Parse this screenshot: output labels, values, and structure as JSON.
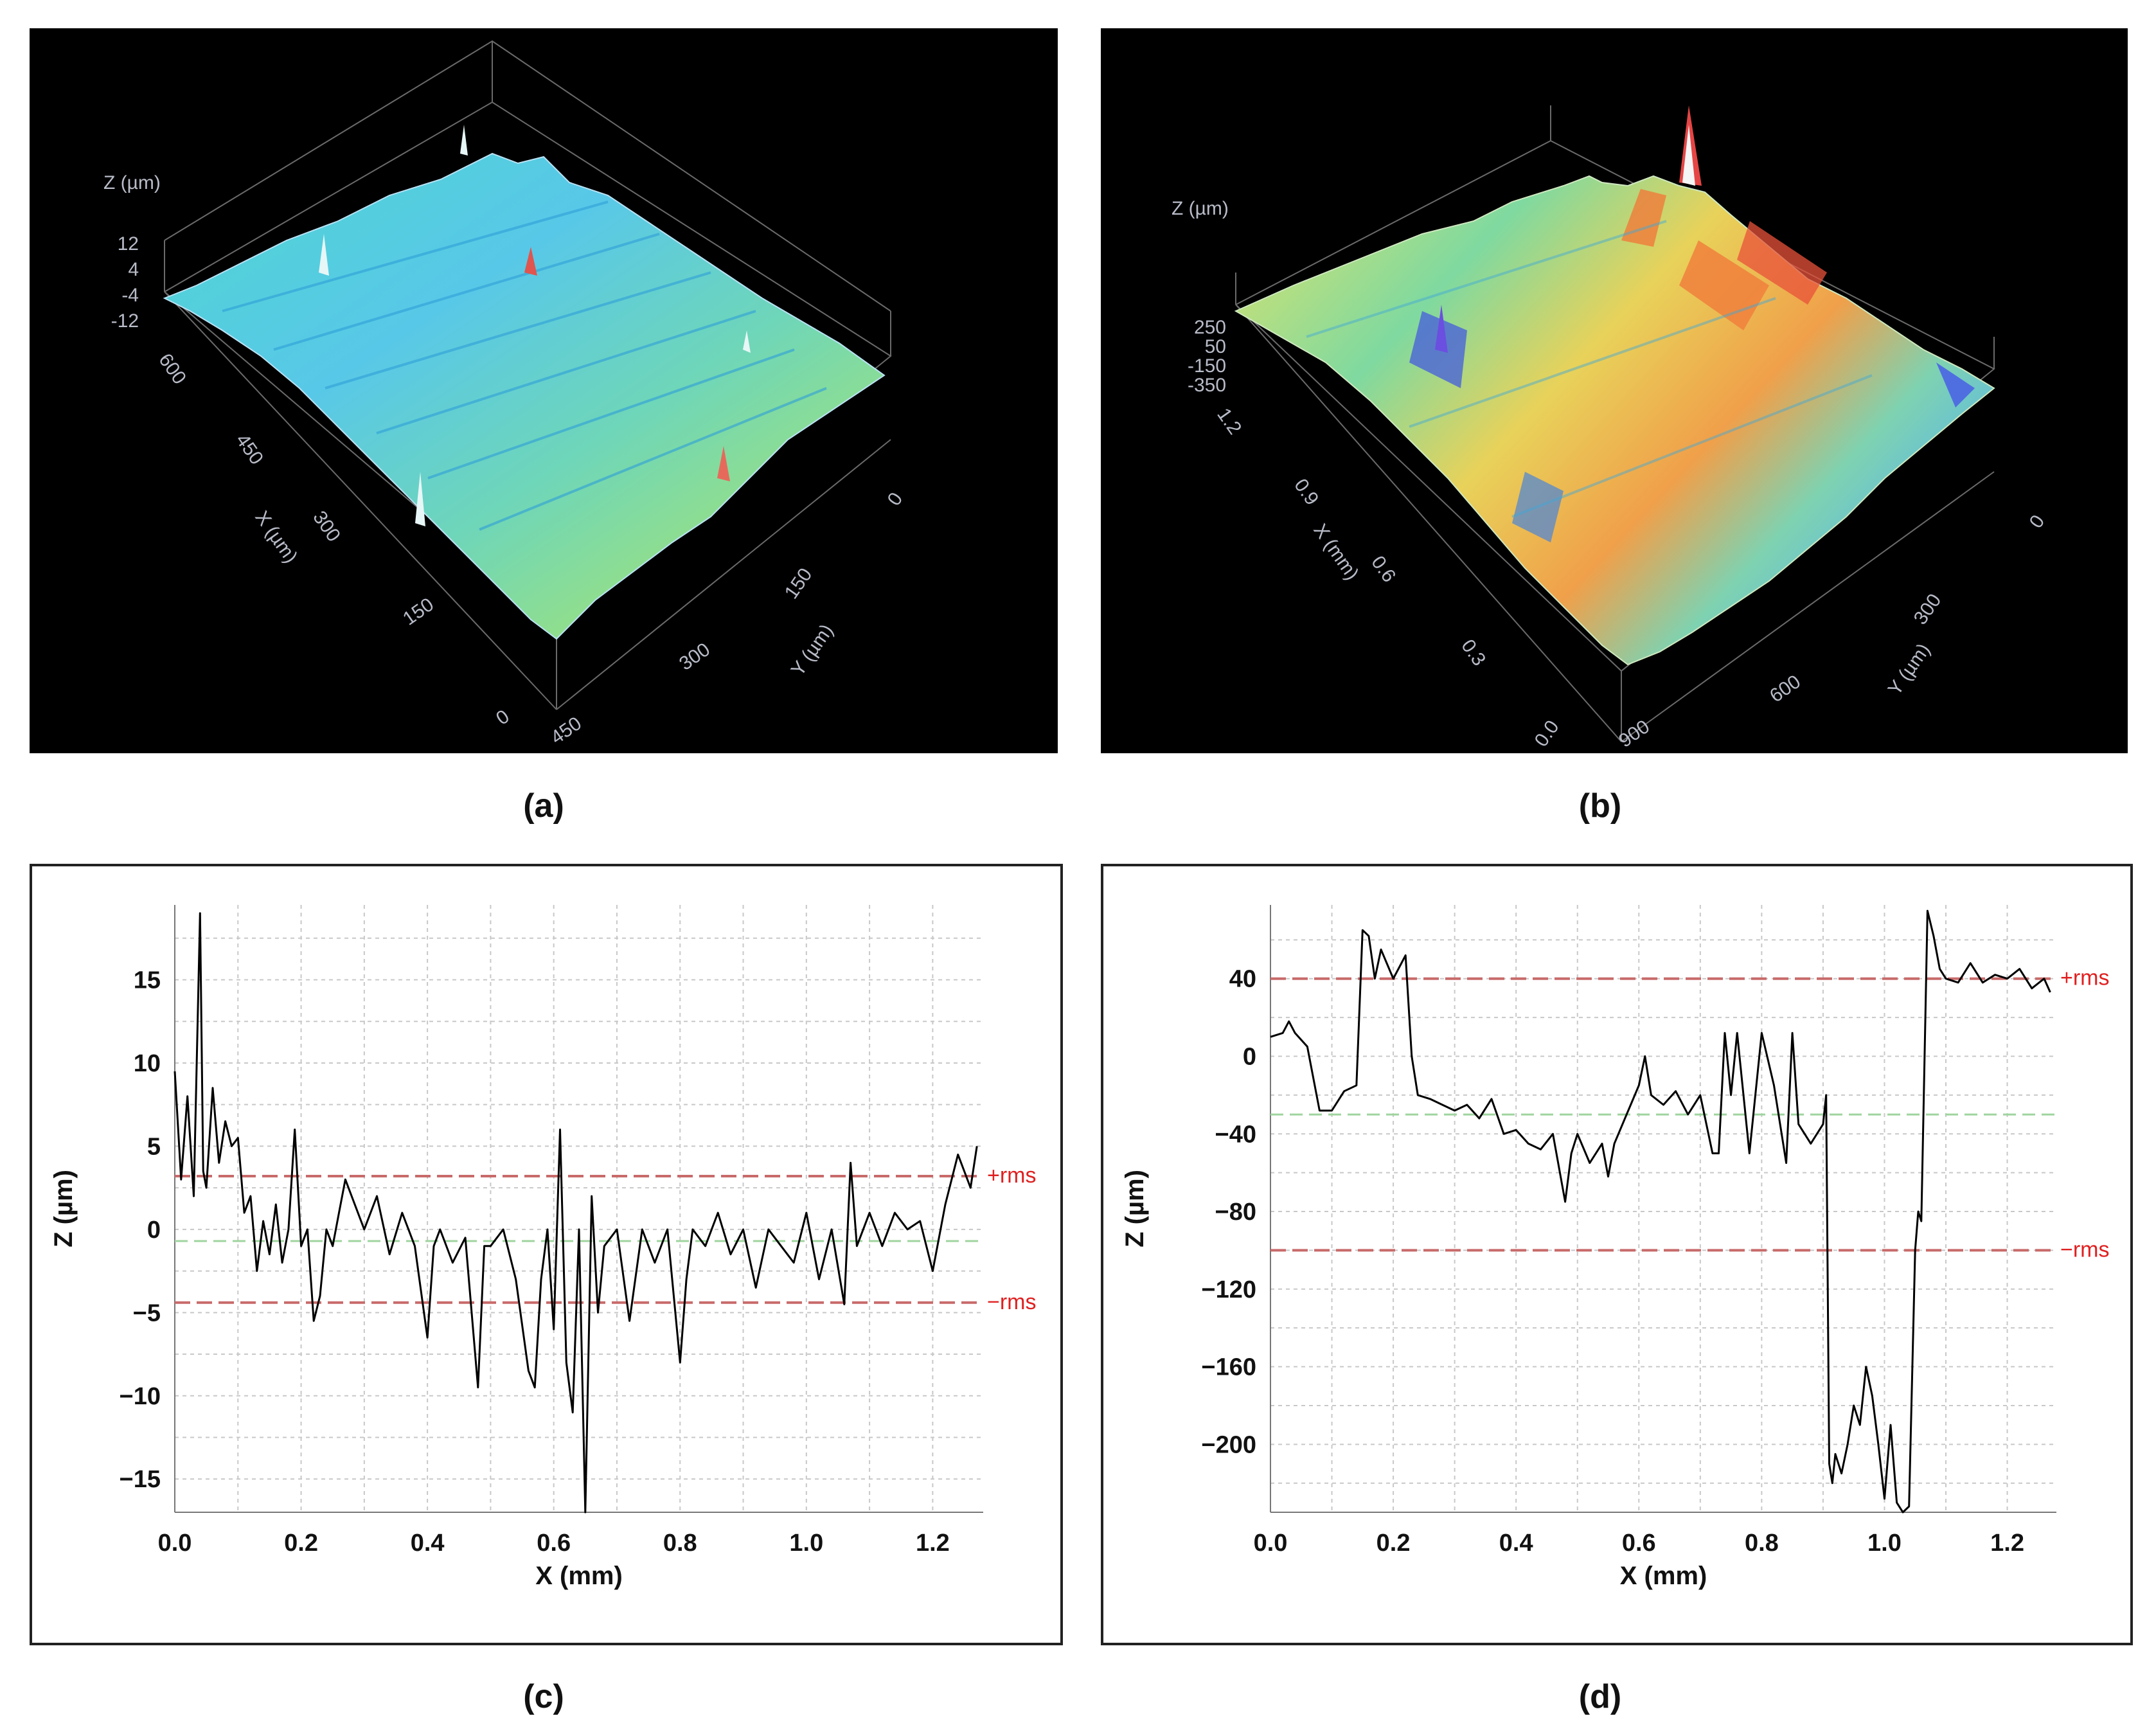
{
  "captions": {
    "a": "(a)",
    "b": "(b)",
    "c": "(c)",
    "d": "(d)"
  },
  "colors": {
    "rms_line": "#c86a6a",
    "mean_line": "#9fd49f",
    "profile_line": "#000000",
    "grid": "#c8c8c8",
    "rms_label": "#e02020"
  },
  "surface_a": {
    "z_label": "Z (µm)",
    "z_ticks": [
      "12",
      "4",
      "-4",
      "-12"
    ],
    "x_label": "X (µm)",
    "x_ticks": [
      "600",
      "450",
      "300",
      "150",
      "0"
    ],
    "y_label": "Y (µm)",
    "y_ticks": [
      "0",
      "150",
      "300",
      "450"
    ]
  },
  "surface_b": {
    "z_label": "Z (µm)",
    "z_ticks": [
      "250",
      "50",
      "-150",
      "-350"
    ],
    "x_label": "X (mm)",
    "x_ticks": [
      "1.2",
      "0.9",
      "0.6",
      "0.3",
      "0.0"
    ],
    "y_label": "Y (µm)",
    "y_ticks": [
      "0",
      "300",
      "600",
      "900"
    ]
  },
  "chart_data": [
    {
      "id": "c",
      "type": "line",
      "xlabel": "X (mm)",
      "ylabel": "Z (µm)",
      "xlim": [
        0.0,
        1.28
      ],
      "ylim": [
        -17,
        19.5
      ],
      "xticks": [
        0.0,
        0.2,
        0.4,
        0.6,
        0.8,
        1.0,
        1.2
      ],
      "xtick_labels": [
        "0.0",
        "0.2",
        "0.4",
        "0.6",
        "0.8",
        "1.0",
        "1.2"
      ],
      "yticks": [
        15,
        10,
        5,
        0,
        -5,
        -10,
        -15
      ],
      "ytick_labels": [
        "15",
        "10",
        "5",
        "0",
        "−5",
        "−10",
        "−15"
      ],
      "plus_rms": 3.2,
      "minus_rms": -4.4,
      "mean": -0.7,
      "plus_rms_label": "+rms",
      "minus_rms_label": "−rms",
      "x": [
        0.0,
        0.01,
        0.02,
        0.03,
        0.04,
        0.045,
        0.05,
        0.06,
        0.07,
        0.08,
        0.09,
        0.1,
        0.11,
        0.12,
        0.13,
        0.14,
        0.15,
        0.16,
        0.17,
        0.18,
        0.19,
        0.2,
        0.21,
        0.22,
        0.23,
        0.24,
        0.25,
        0.26,
        0.27,
        0.28,
        0.3,
        0.32,
        0.34,
        0.36,
        0.38,
        0.4,
        0.41,
        0.42,
        0.44,
        0.46,
        0.48,
        0.49,
        0.5,
        0.52,
        0.54,
        0.56,
        0.57,
        0.58,
        0.59,
        0.6,
        0.61,
        0.62,
        0.63,
        0.64,
        0.65,
        0.66,
        0.67,
        0.68,
        0.7,
        0.72,
        0.74,
        0.76,
        0.78,
        0.8,
        0.81,
        0.82,
        0.84,
        0.86,
        0.88,
        0.9,
        0.92,
        0.94,
        0.96,
        0.98,
        1.0,
        1.02,
        1.04,
        1.06,
        1.07,
        1.08,
        1.1,
        1.12,
        1.14,
        1.16,
        1.18,
        1.2,
        1.22,
        1.24,
        1.26,
        1.27
      ],
      "y": [
        9.5,
        3.0,
        8.0,
        2.0,
        19.0,
        3.5,
        2.5,
        8.5,
        4.0,
        6.5,
        5.0,
        5.5,
        1.0,
        2.0,
        -2.5,
        0.5,
        -1.5,
        1.5,
        -2.0,
        0.0,
        6.0,
        -1.0,
        0.0,
        -5.5,
        -4.0,
        0.0,
        -1.0,
        1.0,
        3.0,
        2.0,
        0.0,
        2.0,
        -1.5,
        1.0,
        -1.0,
        -6.5,
        -1.0,
        0.0,
        -2.0,
        -0.5,
        -9.5,
        -1.0,
        -1.0,
        0.0,
        -3.0,
        -8.5,
        -9.5,
        -3.0,
        0.0,
        -6.0,
        6.0,
        -8.0,
        -11.0,
        0.0,
        -17.5,
        2.0,
        -5.0,
        -1.0,
        0.0,
        -5.5,
        0.0,
        -2.0,
        0.0,
        -8.0,
        -3.0,
        0.0,
        -1.0,
        1.0,
        -1.5,
        0.0,
        -3.5,
        0.0,
        -1.0,
        -2.0,
        1.0,
        -3.0,
        0.0,
        -4.5,
        4.0,
        -1.0,
        1.0,
        -1.0,
        1.0,
        0.0,
        0.5,
        -2.5,
        1.5,
        4.5,
        2.5,
        5.0
      ]
    },
    {
      "id": "d",
      "type": "line",
      "xlabel": "X (mm)",
      "ylabel": "Z (µm)",
      "xlim": [
        0.0,
        1.28
      ],
      "ylim": [
        -235,
        78
      ],
      "xticks": [
        0.0,
        0.2,
        0.4,
        0.6,
        0.8,
        1.0,
        1.2
      ],
      "xtick_labels": [
        "0.0",
        "0.2",
        "0.4",
        "0.6",
        "0.8",
        "1.0",
        "1.2"
      ],
      "yticks": [
        40,
        0,
        -40,
        -80,
        -120,
        -160,
        -200
      ],
      "ytick_labels": [
        "40",
        "0",
        "−40",
        "−80",
        "−120",
        "−160",
        "−200"
      ],
      "plus_rms": 40,
      "minus_rms": -100,
      "mean": -30,
      "plus_rms_label": "+rms",
      "minus_rms_label": "−rms",
      "x": [
        0.0,
        0.02,
        0.03,
        0.04,
        0.06,
        0.08,
        0.1,
        0.12,
        0.14,
        0.15,
        0.16,
        0.17,
        0.18,
        0.2,
        0.22,
        0.23,
        0.24,
        0.26,
        0.28,
        0.3,
        0.32,
        0.34,
        0.36,
        0.38,
        0.4,
        0.42,
        0.44,
        0.46,
        0.48,
        0.49,
        0.5,
        0.52,
        0.54,
        0.55,
        0.56,
        0.58,
        0.6,
        0.61,
        0.62,
        0.64,
        0.66,
        0.68,
        0.7,
        0.72,
        0.73,
        0.74,
        0.75,
        0.76,
        0.78,
        0.8,
        0.82,
        0.84,
        0.85,
        0.86,
        0.87,
        0.88,
        0.9,
        0.905,
        0.91,
        0.915,
        0.92,
        0.93,
        0.94,
        0.95,
        0.96,
        0.97,
        0.98,
        0.99,
        1.0,
        1.01,
        1.02,
        1.03,
        1.04,
        1.05,
        1.055,
        1.06,
        1.07,
        1.08,
        1.09,
        1.1,
        1.12,
        1.14,
        1.16,
        1.18,
        1.2,
        1.22,
        1.24,
        1.26,
        1.27
      ],
      "y": [
        10,
        12,
        18,
        12,
        5,
        -28,
        -28,
        -18,
        -15,
        65,
        62,
        40,
        55,
        40,
        52,
        0,
        -20,
        -22,
        -25,
        -28,
        -25,
        -32,
        -22,
        -40,
        -38,
        -45,
        -48,
        -40,
        -75,
        -50,
        -40,
        -55,
        -45,
        -62,
        -45,
        -30,
        -15,
        0,
        -20,
        -25,
        -18,
        -30,
        -20,
        -50,
        -50,
        12,
        -20,
        12,
        -50,
        12,
        -15,
        -55,
        12,
        -35,
        -40,
        -45,
        -35,
        -20,
        -210,
        -220,
        -205,
        -215,
        -200,
        -180,
        -190,
        -160,
        -175,
        -200,
        -228,
        -190,
        -230,
        -235,
        -232,
        -100,
        -80,
        -85,
        75,
        62,
        45,
        40,
        38,
        48,
        38,
        42,
        40,
        45,
        35,
        40,
        33
      ]
    }
  ]
}
